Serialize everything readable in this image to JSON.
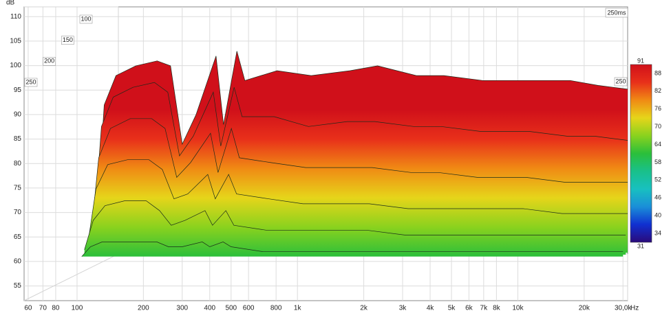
{
  "chart_data": {
    "type": "waterfall",
    "y_label": "dB",
    "x_unit": "Hz",
    "log_x": true,
    "grid": true,
    "xlim": [
      57.5,
      31500
    ],
    "ylim": [
      52,
      112
    ],
    "xticks": [
      60,
      70,
      80,
      100,
      200,
      300,
      400,
      500,
      600,
      800,
      {
        "value": 1000,
        "label": "1k"
      },
      {
        "value": 2000,
        "label": "2k"
      },
      {
        "value": 3000,
        "label": "3k"
      },
      {
        "value": 4000,
        "label": "4k"
      },
      {
        "value": 5000,
        "label": "5k"
      },
      {
        "value": 6000,
        "label": "6k"
      },
      {
        "value": 7000,
        "label": "7k"
      },
      {
        "value": 8000,
        "label": "8k"
      },
      {
        "value": 10000,
        "label": "10k"
      },
      {
        "value": 20000,
        "label": "20k"
      },
      {
        "value": 30000,
        "label": "30,0k"
      }
    ],
    "yticks": [
      55,
      60,
      65,
      70,
      75,
      80,
      85,
      90,
      95,
      100,
      105,
      110
    ],
    "zticks": [
      100,
      150,
      200,
      250
    ],
    "z_end_label": "250ms",
    "z": [
      0,
      50,
      100,
      150,
      200,
      250
    ],
    "x": [
      105,
      115,
      130,
      160,
      200,
      230,
      260,
      300,
      370,
      400,
      460,
      500,
      700,
      1000,
      1500,
      2000,
      3000,
      4000,
      6000,
      8000,
      10000,
      15000,
      20000,
      30000
    ],
    "series": [
      {
        "values": [
          62,
          90,
          96,
          98,
          99,
          98,
          82,
          88,
          100,
          86,
          101,
          95,
          97,
          96,
          97,
          98,
          96,
          96,
          95,
          95,
          95,
          95,
          94,
          93
        ]
      },
      {
        "values": [
          62,
          86,
          92,
          94,
          95,
          93,
          80,
          84,
          93,
          82,
          94,
          88,
          88,
          86,
          87,
          87,
          86,
          86,
          85,
          85,
          85,
          84,
          84,
          83
        ]
      },
      {
        "values": [
          62,
          80,
          86,
          88,
          88,
          86,
          76,
          79,
          85,
          77,
          86,
          80,
          79,
          78,
          78,
          78,
          77,
          77,
          76,
          76,
          76,
          75,
          75,
          75
        ]
      },
      {
        "values": [
          62,
          74,
          79,
          80,
          80,
          78,
          72,
          73,
          77,
          72,
          77,
          73,
          72,
          71,
          71,
          71,
          70,
          70,
          70,
          70,
          70,
          69,
          69,
          69
        ]
      },
      {
        "values": [
          62,
          68,
          71,
          72,
          72,
          70,
          67,
          68,
          70,
          67,
          70,
          67,
          66,
          66,
          66,
          66,
          65,
          65,
          65,
          65,
          65,
          65,
          65,
          65
        ]
      },
      {
        "values": [
          61,
          63,
          64,
          64,
          64,
          64,
          63,
          63,
          64,
          63,
          64,
          63,
          62,
          62,
          62,
          62,
          62,
          62,
          62,
          62,
          62,
          62,
          62,
          62
        ]
      }
    ],
    "colorbar": {
      "lim": [
        31,
        91
      ],
      "ticks": [
        34,
        40,
        46,
        52,
        58,
        64,
        70,
        76,
        82,
        88
      ],
      "colors": [
        "#2a0a7a",
        "#1030d0",
        "#1a8fd8",
        "#18c0c0",
        "#19c08a",
        "#2bbf3a",
        "#8ad21e",
        "#e6d51a",
        "#f08a14",
        "#e8301a",
        "#d0101a"
      ]
    }
  }
}
